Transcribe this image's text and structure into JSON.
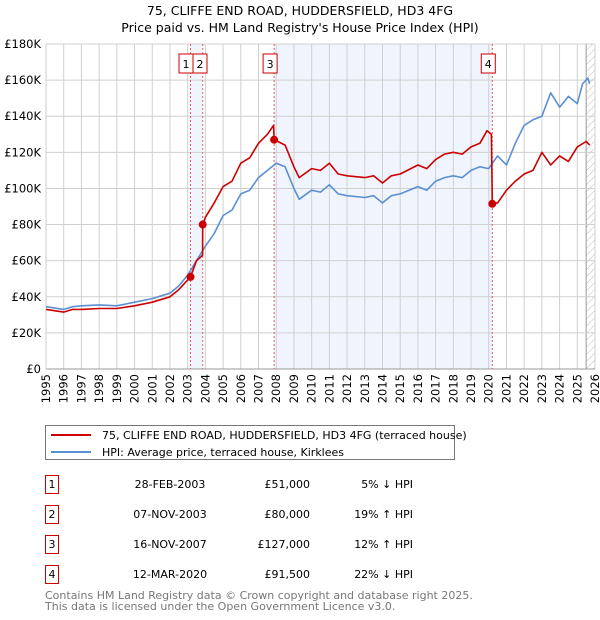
{
  "title_line1": "75, CLIFFE END ROAD, HUDDERSFIELD, HD3 4FG",
  "title_line2": "Price paid vs. HM Land Registry's House Price Index (HPI)",
  "chart_data": {
    "type": "line",
    "title": "75, CLIFFE END ROAD, HUDDERSFIELD, HD3 4FG — Price paid vs. HM Land Registry's House Price Index (HPI)",
    "xlim": [
      1995,
      2026
    ],
    "ylim": [
      0,
      180000
    ],
    "x_ticks": [
      "1995",
      "1996",
      "1997",
      "1998",
      "1999",
      "2000",
      "2001",
      "2002",
      "2003",
      "2004",
      "2005",
      "2006",
      "2007",
      "2008",
      "2009",
      "2010",
      "2011",
      "2012",
      "2013",
      "2014",
      "2015",
      "2016",
      "2017",
      "2018",
      "2019",
      "2020",
      "2021",
      "2022",
      "2023",
      "2024",
      "2025",
      "2026"
    ],
    "y_ticks": [
      {
        "v": 0,
        "label": "£0"
      },
      {
        "v": 20000,
        "label": "£20K"
      },
      {
        "v": 40000,
        "label": "£40K"
      },
      {
        "v": 60000,
        "label": "£60K"
      },
      {
        "v": 80000,
        "label": "£80K"
      },
      {
        "v": 100000,
        "label": "£100K"
      },
      {
        "v": 120000,
        "label": "£120K"
      },
      {
        "v": 140000,
        "label": "£140K"
      },
      {
        "v": 160000,
        "label": "£160K"
      },
      {
        "v": 180000,
        "label": "£180K"
      }
    ],
    "grid": true,
    "series": [
      {
        "name": "75, CLIFFE END ROAD, HUDDERSFIELD, HD3 4FG (terraced house)",
        "color": "#cc0000",
        "x": [
          1995,
          1996,
          1996.5,
          1997,
          1998,
          1999,
          2000,
          2001,
          2002,
          2002.5,
          2003.16,
          2003.5,
          2003.84,
          2003.85,
          2004,
          2004.5,
          2005,
          2005.5,
          2006,
          2006.5,
          2007,
          2007.5,
          2007.85,
          2007.88,
          2008.5,
          2009,
          2009.3,
          2010,
          2010.5,
          2011,
          2011.5,
          2012,
          2013,
          2013.5,
          2014,
          2014.5,
          2015,
          2016,
          2016.5,
          2017,
          2017.5,
          2018,
          2018.5,
          2019,
          2019.5,
          2019.9,
          2020.15,
          2020.2,
          2020.5,
          2021,
          2021.5,
          2022,
          2022.5,
          2023,
          2023.5,
          2024,
          2024.5,
          2025,
          2025.5,
          2025.7
        ],
        "values": [
          33000,
          31500,
          33000,
          33000,
          33500,
          33500,
          35000,
          37000,
          40000,
          44000,
          51000,
          60000,
          63000,
          80000,
          84000,
          92000,
          101000,
          104000,
          114000,
          117000,
          125000,
          130000,
          135000,
          127000,
          124000,
          112000,
          106000,
          111000,
          110000,
          114000,
          108000,
          107000,
          106000,
          107000,
          103000,
          107000,
          108000,
          113000,
          111000,
          116000,
          119000,
          120000,
          119000,
          123000,
          125000,
          132000,
          130000,
          91500,
          92000,
          99000,
          104000,
          108000,
          110000,
          120000,
          113000,
          118000,
          115000,
          123000,
          126000,
          124000
        ]
      },
      {
        "name": "HPI: Average price, terraced house, Kirklees",
        "color": "#5b8fd4",
        "x": [
          1995,
          1996,
          1996.5,
          1997,
          1998,
          1999,
          2000,
          2001,
          2002,
          2002.5,
          2003,
          2003.5,
          2004,
          2004.5,
          2005,
          2005.5,
          2006,
          2006.5,
          2007,
          2007.5,
          2008,
          2008.5,
          2009,
          2009.3,
          2010,
          2010.5,
          2011,
          2011.5,
          2012,
          2013,
          2013.5,
          2014,
          2014.5,
          2015,
          2016,
          2016.5,
          2017,
          2017.5,
          2018,
          2018.5,
          2019,
          2019.5,
          2020,
          2020.5,
          2021,
          2021.5,
          2022,
          2022.5,
          2023,
          2023.5,
          2024,
          2024.5,
          2025,
          2025.3,
          2025.6,
          2025.7
        ],
        "values": [
          34500,
          33000,
          34500,
          35000,
          35500,
          35000,
          37000,
          39000,
          42000,
          46000,
          52000,
          60000,
          68000,
          75000,
          85000,
          88000,
          97000,
          99000,
          106000,
          110000,
          114000,
          112000,
          100000,
          94000,
          99000,
          98000,
          102000,
          97000,
          96000,
          95000,
          96000,
          92000,
          96000,
          97000,
          101000,
          99000,
          104000,
          106000,
          107000,
          106000,
          110000,
          112000,
          111000,
          118000,
          113000,
          125000,
          135000,
          138000,
          140000,
          153000,
          145000,
          151000,
          147000,
          158000,
          161000,
          158000
        ]
      }
    ],
    "sales": [
      {
        "label": "1",
        "x": 2003.16,
        "value": 51000
      },
      {
        "label": "2",
        "x": 2003.85,
        "value": 80000
      },
      {
        "label": "3",
        "x": 2007.88,
        "value": 127000
      },
      {
        "label": "4",
        "x": 2020.2,
        "value": 91500
      }
    ],
    "shaded_ranges": [
      [
        2003.16,
        2003.85
      ],
      [
        2007.88,
        2020.2
      ]
    ],
    "forecast_hatch_from": 2025.5
  },
  "legend": {
    "property": "75, CLIFFE END ROAD, HUDDERSFIELD, HD3 4FG (terraced house)",
    "hpi": "HPI: Average price, terraced house, Kirklees"
  },
  "transactions": [
    {
      "num": "1",
      "date": "28-FEB-2003",
      "price": "£51,000",
      "hpi": "5% ↓ HPI"
    },
    {
      "num": "2",
      "date": "07-NOV-2003",
      "price": "£80,000",
      "hpi": "19% ↑ HPI"
    },
    {
      "num": "3",
      "date": "16-NOV-2007",
      "price": "£127,000",
      "hpi": "12% ↑ HPI"
    },
    {
      "num": "4",
      "date": "12-MAR-2020",
      "price": "£91,500",
      "hpi": "22% ↓ HPI"
    }
  ],
  "footer_line1": "Contains HM Land Registry data © Crown copyright and database right 2025.",
  "footer_line2": "This data is licensed under the Open Government Licence v3.0."
}
